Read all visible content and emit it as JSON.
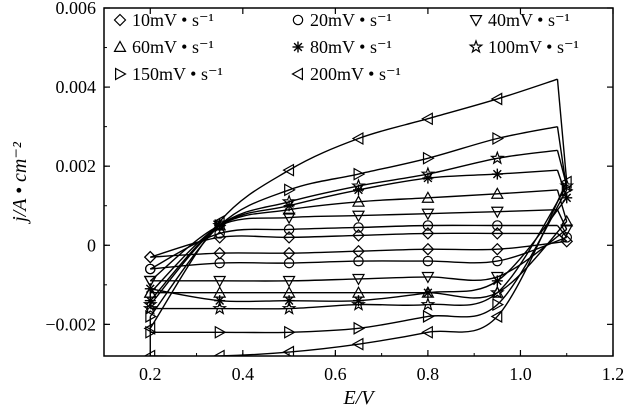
{
  "chart_data": {
    "type": "line",
    "title": "",
    "xlabel": "E/V",
    "ylabel": "j/A • cm⁻²",
    "xlim": [
      0.1,
      1.2
    ],
    "ylim": [
      -0.0028,
      0.006
    ],
    "x_ticks": [
      0.2,
      0.4,
      0.6,
      0.8,
      1.0,
      1.2
    ],
    "x_tick_labels": [
      "0.2",
      "0.4",
      "0.6",
      "0.8",
      "1.0",
      "1.2"
    ],
    "y_ticks": [
      -0.002,
      0,
      0.002,
      0.004,
      0.006
    ],
    "y_tick_labels": [
      "−0.002",
      "0",
      "0.002",
      "0.004",
      "0.006"
    ],
    "grid": false,
    "legend_position": "top-left",
    "series": [
      {
        "name": "10mV • s⁻¹",
        "marker": "diamond",
        "anodic_x": [
          0.2,
          0.35,
          0.5,
          0.65,
          0.8,
          0.95,
          1.08
        ],
        "anodic_y": [
          -0.0003,
          0.0002,
          0.0002,
          0.00025,
          0.0003,
          0.0003,
          0.0003
        ],
        "cathodic_x": [
          1.1,
          0.95,
          0.8,
          0.65,
          0.5,
          0.35,
          0.2
        ],
        "cathodic_y": [
          0.0001,
          -0.0001,
          -0.0001,
          -0.00015,
          -0.0002,
          -0.0002,
          -0.0003
        ]
      },
      {
        "name": "20mV • s⁻¹",
        "marker": "circle",
        "anodic_x": [
          0.2,
          0.35,
          0.5,
          0.65,
          0.8,
          0.95,
          1.08
        ],
        "anodic_y": [
          -0.0006,
          0.0003,
          0.0004,
          0.00045,
          0.0005,
          0.0005,
          0.0005
        ],
        "cathodic_x": [
          1.1,
          0.95,
          0.8,
          0.65,
          0.5,
          0.35,
          0.2
        ],
        "cathodic_y": [
          0.0002,
          -0.0004,
          -0.0004,
          -0.0004,
          -0.00045,
          -0.00045,
          -0.0006
        ]
      },
      {
        "name": "40mV • s⁻¹",
        "marker": "triangle-down",
        "anodic_x": [
          0.2,
          0.35,
          0.5,
          0.65,
          0.8,
          0.95,
          1.08
        ],
        "anodic_y": [
          -0.0009,
          0.0005,
          0.0007,
          0.00075,
          0.0008,
          0.00085,
          0.0009
        ],
        "cathodic_x": [
          1.1,
          0.95,
          0.8,
          0.65,
          0.5,
          0.35,
          0.2
        ],
        "cathodic_y": [
          0.0004,
          -0.0008,
          -0.0008,
          -0.00085,
          -0.0009,
          -0.0009,
          -0.0009
        ]
      },
      {
        "name": "60mV • s⁻¹",
        "marker": "triangle-up",
        "anodic_x": [
          0.2,
          0.35,
          0.5,
          0.65,
          0.8,
          0.95,
          1.08
        ],
        "anodic_y": [
          -0.0012,
          0.0005,
          0.0009,
          0.0011,
          0.0012,
          0.0013,
          0.0014
        ],
        "cathodic_x": [
          1.1,
          0.95,
          0.8,
          0.65,
          0.5,
          0.35,
          0.2
        ],
        "cathodic_y": [
          0.0006,
          -0.0012,
          -0.0012,
          -0.0012,
          -0.0012,
          -0.0012,
          -0.0012
        ]
      },
      {
        "name": "80mV • s⁻¹",
        "marker": "asterisk",
        "anodic_x": [
          0.2,
          0.35,
          0.5,
          0.65,
          0.8,
          0.95,
          1.08
        ],
        "anodic_y": [
          -0.0014,
          0.0005,
          0.001,
          0.0014,
          0.0017,
          0.0018,
          0.0019
        ],
        "cathodic_x": [
          1.1,
          0.95,
          0.8,
          0.65,
          0.5,
          0.35,
          0.2
        ],
        "cathodic_y": [
          0.0012,
          -0.0009,
          -0.0012,
          -0.0014,
          -0.0014,
          -0.0014,
          -0.0011
        ]
      },
      {
        "name": "100mV • s⁻¹",
        "marker": "star",
        "anodic_x": [
          0.2,
          0.35,
          0.5,
          0.65,
          0.8,
          0.95,
          1.08
        ],
        "anodic_y": [
          -0.0015,
          0.0005,
          0.0011,
          0.0015,
          0.0018,
          0.0022,
          0.0024
        ],
        "cathodic_x": [
          1.1,
          0.95,
          0.8,
          0.65,
          0.5,
          0.35,
          0.2
        ],
        "cathodic_y": [
          0.0015,
          -0.0012,
          -0.0015,
          -0.0015,
          -0.0016,
          -0.0016,
          -0.0016
        ]
      },
      {
        "name": "150mV • s⁻¹",
        "marker": "triangle-right",
        "anodic_x": [
          0.2,
          0.35,
          0.5,
          0.65,
          0.8,
          0.95,
          1.08
        ],
        "anodic_y": [
          -0.0018,
          0.0005,
          0.0014,
          0.0018,
          0.0022,
          0.0027,
          0.003
        ],
        "cathodic_x": [
          1.1,
          0.95,
          0.8,
          0.65,
          0.5,
          0.35,
          0.2
        ],
        "cathodic_y": [
          0.0014,
          -0.0015,
          -0.0018,
          -0.0021,
          -0.0022,
          -0.0022,
          -0.0022
        ]
      },
      {
        "name": "200mV • s⁻¹",
        "marker": "triangle-left",
        "anodic_x": [
          0.2,
          0.35,
          0.5,
          0.65,
          0.8,
          0.95,
          1.08
        ],
        "anodic_y": [
          -0.0021,
          0.0006,
          0.0019,
          0.0027,
          0.0032,
          0.0037,
          0.0042
        ],
        "cathodic_x": [
          1.1,
          0.95,
          0.8,
          0.65,
          0.5,
          0.35,
          0.2
        ],
        "cathodic_y": [
          0.0016,
          -0.0018,
          -0.0022,
          -0.0025,
          -0.0027,
          -0.0028,
          -0.0028
        ]
      }
    ]
  }
}
